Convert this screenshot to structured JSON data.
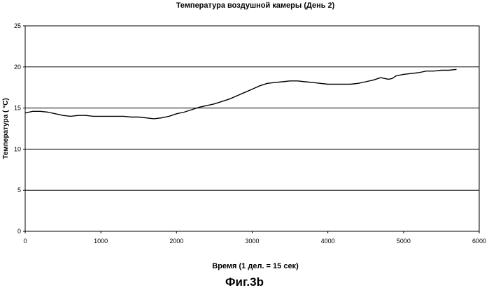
{
  "chart_data": {
    "type": "line",
    "title": "Температура воздушной камеры (День 2)",
    "xlabel": "Время (1 дел. = 15 сек)",
    "ylabel": "Температура ( °С)",
    "xlim": [
      0,
      6000
    ],
    "ylim": [
      0,
      25
    ],
    "xticks": [
      0,
      1000,
      2000,
      3000,
      4000,
      5000,
      6000
    ],
    "yticks": [
      0,
      5,
      10,
      15,
      20,
      25
    ],
    "grid": "horizontal",
    "series": [
      {
        "color": "#000000",
        "x": [
          0,
          100,
          200,
          300,
          400,
          500,
          600,
          700,
          800,
          900,
          1000,
          1100,
          1200,
          1300,
          1400,
          1500,
          1600,
          1700,
          1800,
          1900,
          2000,
          2100,
          2200,
          2300,
          2400,
          2500,
          2600,
          2700,
          2800,
          2900,
          3000,
          3100,
          3200,
          3300,
          3400,
          3500,
          3600,
          3700,
          3800,
          3900,
          4000,
          4100,
          4200,
          4300,
          4400,
          4500,
          4600,
          4700,
          4750,
          4800,
          4850,
          4900,
          5000,
          5100,
          5200,
          5300,
          5400,
          5500,
          5600,
          5700
        ],
        "y": [
          14.4,
          14.6,
          14.6,
          14.5,
          14.3,
          14.1,
          14.0,
          14.1,
          14.1,
          14.0,
          14.0,
          14.0,
          14.0,
          14.0,
          13.9,
          13.9,
          13.8,
          13.7,
          13.8,
          14.0,
          14.3,
          14.5,
          14.8,
          15.1,
          15.3,
          15.5,
          15.8,
          16.1,
          16.5,
          16.9,
          17.3,
          17.7,
          18.0,
          18.1,
          18.2,
          18.3,
          18.3,
          18.2,
          18.1,
          18.0,
          17.9,
          17.9,
          17.9,
          17.9,
          18.0,
          18.2,
          18.4,
          18.7,
          18.6,
          18.5,
          18.6,
          18.9,
          19.1,
          19.2,
          19.3,
          19.5,
          19.5,
          19.6,
          19.6,
          19.7
        ]
      }
    ]
  },
  "caption": "Фиг.3b"
}
